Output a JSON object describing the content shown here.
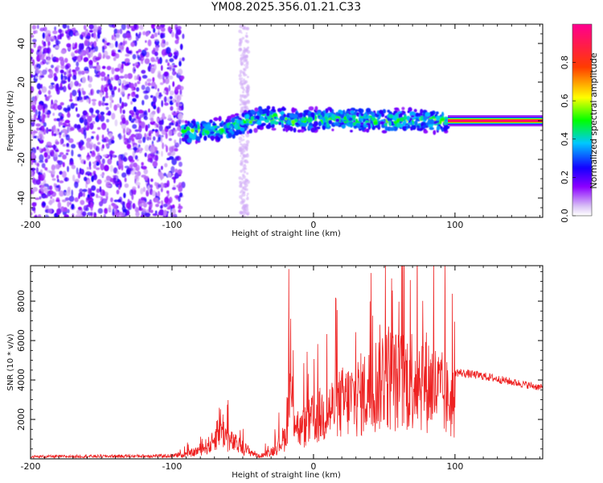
{
  "chart_data": [
    {
      "type": "heatmap",
      "title": "YM08.2025.356.01.21.C33",
      "xlabel": "Height of straight line (km)",
      "ylabel": "Frequency (Hz)",
      "xlim": [
        -200,
        162
      ],
      "ylim": [
        -50,
        50
      ],
      "x_ticks": [
        -200,
        -100,
        0,
        100
      ],
      "y_ticks": [
        -40,
        -20,
        0,
        20,
        40
      ],
      "colorbar": {
        "label": "Normalized spectral amplitude",
        "range": [
          0.0,
          1.0
        ],
        "ticks": [
          0.0,
          0.2,
          0.4,
          0.6,
          0.8
        ],
        "colormap": "rainbow (white-violet-blue-cyan-green-yellow-red-magenta)"
      },
      "regions": [
        {
          "name": "broadband noise",
          "x_range": [
            -200,
            -92
          ],
          "freq_range": [
            -50,
            50
          ],
          "amplitude": [
            0.05,
            0.25
          ]
        },
        {
          "name": "noise stripe",
          "x_range": [
            -52,
            -46
          ],
          "freq_range": [
            -50,
            50
          ],
          "amplitude": [
            0.02,
            0.05
          ]
        },
        {
          "name": "doppler trace",
          "x_range": [
            -92,
            95
          ],
          "freq_center": [
            [
              -92,
              -6
            ],
            [
              -60,
              -4
            ],
            [
              -35,
              2
            ],
            [
              -10,
              0
            ],
            [
              20,
              1
            ],
            [
              60,
              0
            ],
            [
              95,
              0
            ]
          ],
          "half_width_hz": 4,
          "amplitude": [
            0.2,
            0.6
          ]
        },
        {
          "name": "steady tone",
          "x_range": [
            95,
            162
          ],
          "freq": 0,
          "amplitude": 0.95
        }
      ]
    },
    {
      "type": "line",
      "xlabel": "Height of straight line (km)",
      "ylabel": "SNR (10 * v/v)",
      "xlim": [
        -200,
        162
      ],
      "ylim": [
        0,
        9800
      ],
      "x_ticks": [
        -200,
        -100,
        0,
        100
      ],
      "y_ticks": [
        2000,
        4000,
        6000,
        8000
      ],
      "color": "#ee2222",
      "envelope_km_snr": [
        [
          -200,
          150
        ],
        [
          -100,
          200
        ],
        [
          -85,
          500
        ],
        [
          -72,
          1200
        ],
        [
          -66,
          2800
        ],
        [
          -60,
          1500
        ],
        [
          -45,
          600
        ],
        [
          -38,
          200
        ],
        [
          -28,
          700
        ],
        [
          -20,
          1800
        ],
        [
          -17,
          5500
        ],
        [
          -10,
          2200
        ],
        [
          0,
          3200
        ],
        [
          20,
          4500
        ],
        [
          40,
          5500
        ],
        [
          50,
          7000
        ],
        [
          60,
          6200
        ],
        [
          75,
          6800
        ],
        [
          85,
          5800
        ],
        [
          95,
          4800
        ],
        [
          100,
          4400
        ],
        [
          120,
          4200
        ],
        [
          140,
          3900
        ],
        [
          162,
          3600
        ]
      ]
    }
  ],
  "colors": {
    "line": "#ee2222",
    "axis": "#000000",
    "background": "#ffffff"
  }
}
